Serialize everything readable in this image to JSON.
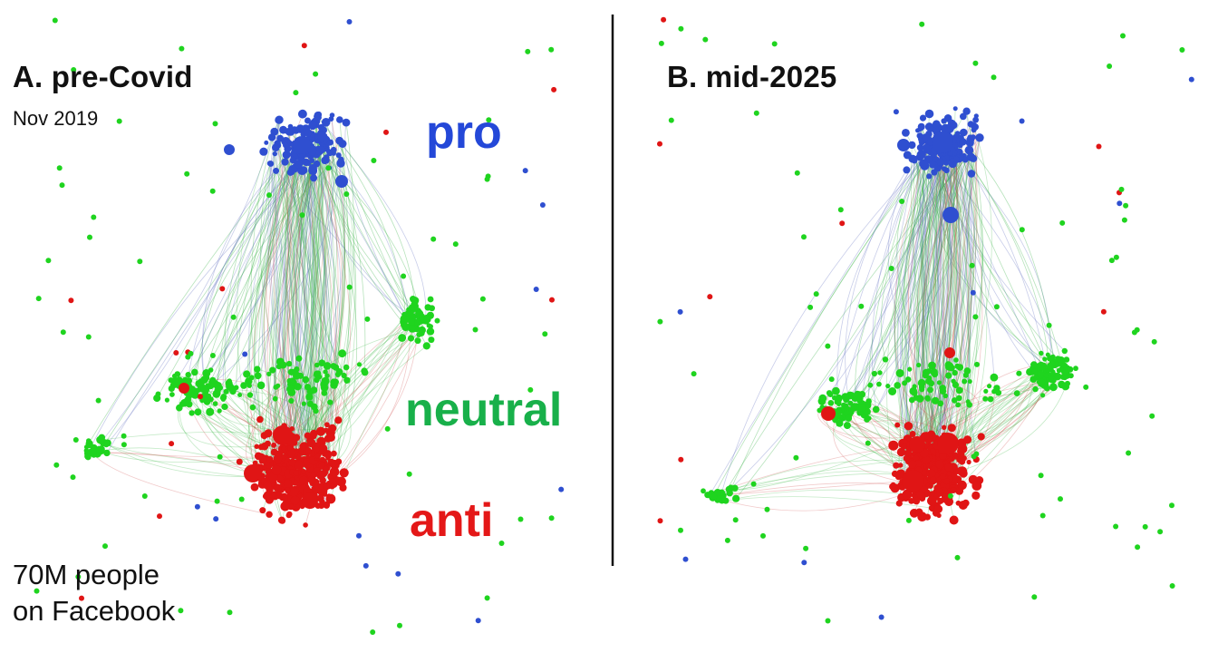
{
  "panels": [
    {
      "title": "A. pre-Covid",
      "subtitle": "Nov 2019"
    },
    {
      "title": "B. mid-2025",
      "subtitle": ""
    }
  ],
  "clusters": {
    "pro": {
      "label": "pro",
      "color": "#2448d8"
    },
    "neutral": {
      "label": "neutral",
      "color": "#18b04a"
    },
    "anti": {
      "label": "anti",
      "color": "#e41818"
    }
  },
  "node_colors": {
    "pro": "#2f4fd0",
    "neutral": "#1fd41f",
    "anti": "#e01515"
  },
  "footnote": {
    "line1": "70M people",
    "line2": "on Facebook"
  },
  "divider_color": "#111111"
}
